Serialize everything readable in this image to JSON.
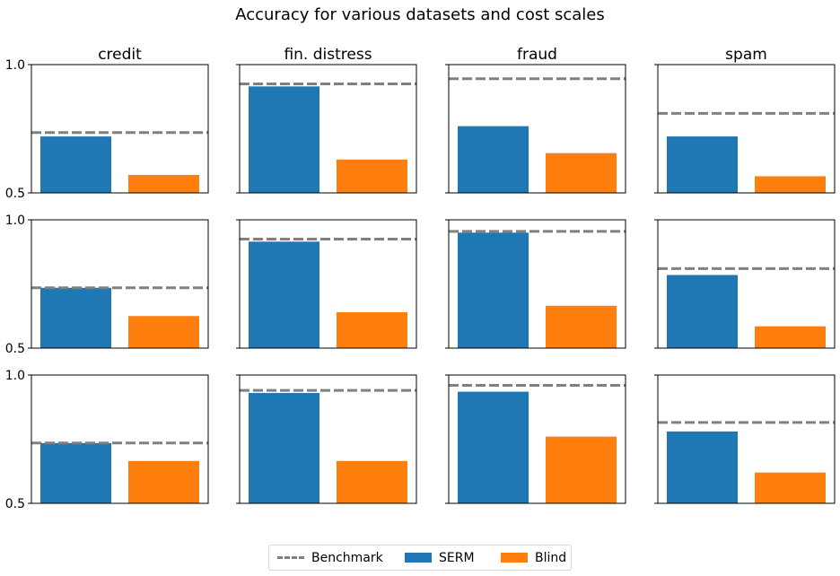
{
  "chart_data": {
    "type": "bar",
    "title": "Accuracy for various datasets and cost scales",
    "datasets": [
      "credit",
      "fin. distress",
      "fraud",
      "spam"
    ],
    "categories": [
      "SERM",
      "Blind"
    ],
    "ylim": [
      0.5,
      1.0
    ],
    "yticks": [
      "0.5",
      "1.0"
    ],
    "legend": {
      "placement": "bottom-center",
      "entries": [
        {
          "label": "Benchmark",
          "kind": "dashed-line",
          "color": "#808080"
        },
        {
          "label": "SERM",
          "kind": "bar",
          "color": "#1f77b4"
        },
        {
          "label": "Blind",
          "kind": "bar",
          "color": "#ff7f0e"
        }
      ]
    },
    "rows": [
      [
        {
          "dataset": "credit",
          "SERM": 0.72,
          "Blind": 0.57,
          "benchmark": 0.735
        },
        {
          "dataset": "fin. distress",
          "SERM": 0.915,
          "Blind": 0.63,
          "benchmark": 0.925
        },
        {
          "dataset": "fraud",
          "SERM": 0.76,
          "Blind": 0.655,
          "benchmark": 0.945
        },
        {
          "dataset": "spam",
          "SERM": 0.72,
          "Blind": 0.565,
          "benchmark": 0.81
        }
      ],
      [
        {
          "dataset": "credit",
          "SERM": 0.735,
          "Blind": 0.625,
          "benchmark": 0.735
        },
        {
          "dataset": "fin. distress",
          "SERM": 0.915,
          "Blind": 0.64,
          "benchmark": 0.925
        },
        {
          "dataset": "fraud",
          "SERM": 0.95,
          "Blind": 0.665,
          "benchmark": 0.955
        },
        {
          "dataset": "spam",
          "SERM": 0.785,
          "Blind": 0.585,
          "benchmark": 0.81
        }
      ],
      [
        {
          "dataset": "credit",
          "SERM": 0.735,
          "Blind": 0.665,
          "benchmark": 0.735
        },
        {
          "dataset": "fin. distress",
          "SERM": 0.93,
          "Blind": 0.665,
          "benchmark": 0.94
        },
        {
          "dataset": "fraud",
          "SERM": 0.935,
          "Blind": 0.76,
          "benchmark": 0.96
        },
        {
          "dataset": "spam",
          "SERM": 0.78,
          "Blind": 0.62,
          "benchmark": 0.815
        }
      ]
    ]
  }
}
